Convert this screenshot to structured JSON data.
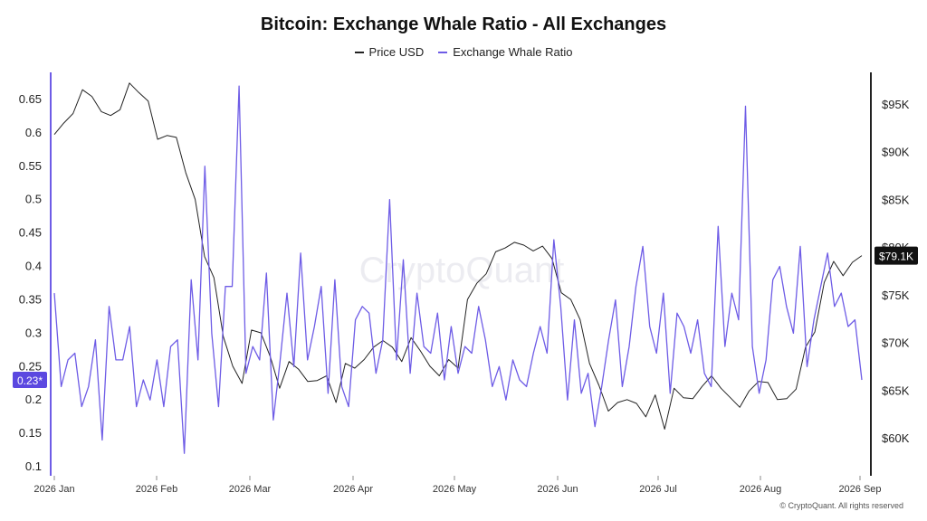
{
  "chart_data": {
    "type": "line",
    "title": "Bitcoin: Exchange Whale Ratio - All Exchanges",
    "x_tick_labels": [
      "2026 Jan",
      "2026 Feb",
      "2026 Mar",
      "2026 Apr",
      "2026 May",
      "2026 Jun",
      "2026 Jul",
      "2026 Aug",
      "2026 Sep"
    ],
    "y_left": {
      "ticks": [
        "0.1",
        "0.15",
        "0.2",
        "0.25",
        "0.3",
        "0.35",
        "0.4",
        "0.45",
        "0.5",
        "0.55",
        "0.6",
        "0.65"
      ],
      "range": [
        0.1,
        0.65
      ]
    },
    "y_right": {
      "ticks": [
        "$60K",
        "$65K",
        "$70K",
        "$75K",
        "$80K",
        "$85K",
        "$90K",
        "$95K"
      ],
      "range": [
        60000,
        95000
      ]
    },
    "legend_position": "top-center",
    "series": [
      {
        "name": "Price USD",
        "color": "#222222",
        "axis": "right",
        "values": [
          91800,
          93000,
          94000,
          96500,
          95800,
          94200,
          93800,
          94400,
          97200,
          96200,
          95300,
          91300,
          91700,
          91500,
          87800,
          85000,
          79000,
          76800,
          70600,
          67500,
          65700,
          71300,
          71000,
          68500,
          65200,
          68000,
          67200,
          65900,
          66000,
          66500,
          63700,
          67800,
          67300,
          68200,
          69500,
          70200,
          69500,
          68000,
          70500,
          69100,
          67500,
          66500,
          68200,
          67300,
          74500,
          76200,
          77200,
          79500,
          79900,
          80500,
          80200,
          79600,
          80100,
          78800,
          75200,
          74500,
          72400,
          67800,
          65500,
          62800,
          63700,
          64000,
          63600,
          62200,
          64500,
          60900,
          65200,
          64200,
          64100,
          65400,
          66500,
          65200,
          64200,
          63200,
          64900,
          65900,
          65800,
          64000,
          64100,
          65100,
          69500,
          71100,
          76300,
          78500,
          77000,
          78400,
          79100
        ]
      },
      {
        "name": "Exchange Whale Ratio",
        "color": "#6e5ce6",
        "axis": "left",
        "values": [
          0.36,
          0.22,
          0.26,
          0.27,
          0.19,
          0.22,
          0.29,
          0.14,
          0.34,
          0.26,
          0.26,
          0.31,
          0.19,
          0.23,
          0.2,
          0.26,
          0.19,
          0.28,
          0.29,
          0.12,
          0.38,
          0.26,
          0.55,
          0.3,
          0.19,
          0.37,
          0.37,
          0.67,
          0.24,
          0.28,
          0.26,
          0.39,
          0.17,
          0.26,
          0.36,
          0.25,
          0.42,
          0.26,
          0.31,
          0.37,
          0.21,
          0.38,
          0.22,
          0.19,
          0.32,
          0.34,
          0.33,
          0.24,
          0.29,
          0.5,
          0.26,
          0.41,
          0.24,
          0.36,
          0.28,
          0.27,
          0.33,
          0.23,
          0.31,
          0.24,
          0.28,
          0.27,
          0.34,
          0.29,
          0.22,
          0.25,
          0.2,
          0.26,
          0.23,
          0.22,
          0.27,
          0.31,
          0.27,
          0.44,
          0.34,
          0.2,
          0.32,
          0.21,
          0.24,
          0.16,
          0.22,
          0.29,
          0.35,
          0.22,
          0.28,
          0.37,
          0.43,
          0.31,
          0.27,
          0.36,
          0.21,
          0.33,
          0.31,
          0.27,
          0.32,
          0.24,
          0.22,
          0.46,
          0.28,
          0.36,
          0.32,
          0.64,
          0.28,
          0.21,
          0.26,
          0.38,
          0.4,
          0.34,
          0.3,
          0.43,
          0.25,
          0.32,
          0.37,
          0.42,
          0.34,
          0.36,
          0.31,
          0.32,
          0.23
        ]
      }
    ],
    "current_value_labels": {
      "left": "0.23*",
      "right": "$79.1K"
    },
    "watermark": "CryptoQuant",
    "footer": "© CryptoQuant. All rights reserved"
  }
}
